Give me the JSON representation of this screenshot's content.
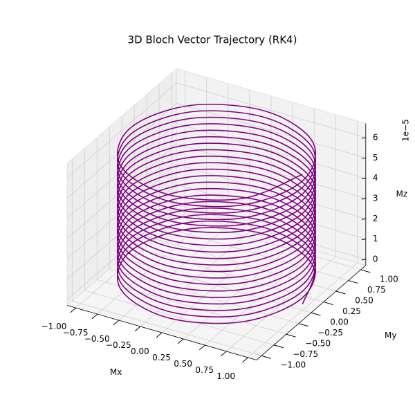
{
  "chart_data": {
    "type": "line3d",
    "title": "3D Bloch Vector Trajectory (RK4)",
    "xlabel": "Mx",
    "ylabel": "My",
    "zlabel": "Mz",
    "z_offset_label": "1e−5",
    "xlim": [
      -1.1,
      1.1
    ],
    "ylim": [
      -1.1,
      1.1
    ],
    "zlim": [
      -0.3,
      6.7
    ],
    "xticks": [
      {
        "value": -1,
        "label": "−1.00"
      },
      {
        "value": -0.75,
        "label": "−0.75"
      },
      {
        "value": -0.5,
        "label": "−0.50"
      },
      {
        "value": -0.25,
        "label": "−0.25"
      },
      {
        "value": 0,
        "label": "0.00"
      },
      0.25,
      {
        "value": 0.5,
        "label": "0.50"
      },
      0.75,
      {
        "value": 1,
        "label": "1.00"
      }
    ],
    "yticks": [
      {
        "value": -1,
        "label": "−1.00"
      },
      {
        "value": -0.75,
        "label": "−0.75"
      },
      {
        "value": -0.5,
        "label": "−0.50"
      },
      {
        "value": -0.25,
        "label": "−0.25"
      },
      {
        "value": 0,
        "label": "0.00"
      },
      0.25,
      {
        "value": 0.5,
        "label": "0.50"
      },
      0.75,
      {
        "value": 1,
        "label": "1.00"
      }
    ],
    "zticks": [
      0,
      1,
      2,
      3,
      4,
      5,
      6
    ],
    "grid": true,
    "series": [
      {
        "color": "#800080",
        "x": [
          1,
          0.71,
          0,
          -0.71,
          -1,
          -0.71,
          0,
          0.71,
          1,
          0.71,
          0,
          -0.71,
          -1,
          -0.71,
          0,
          0.71,
          1,
          0.71,
          0,
          -0.71,
          -1,
          -0.71,
          0,
          0.71,
          1,
          0.71,
          0,
          -0.71,
          -1,
          -0.71,
          0,
          0.71,
          1,
          0.71,
          0,
          -0.71,
          -1,
          -0.71,
          0,
          0.71,
          1,
          0.71,
          0,
          -0.71,
          -1,
          -0.71,
          0,
          0.71,
          1,
          0.71,
          0,
          -0.71,
          -1,
          -0.71,
          0,
          0.71,
          1,
          0.71,
          0,
          -0.71,
          -1,
          -0.71,
          0,
          0.71,
          1,
          0.71,
          0,
          -0.71,
          -1,
          -0.71,
          0,
          0.71,
          1,
          0.71,
          0,
          -0.71,
          -1,
          -0.71,
          0,
          0.71,
          1,
          0.71,
          0,
          -0.71,
          -1,
          -0.71,
          0,
          0.71,
          1,
          0.71,
          0,
          -0.71,
          -1,
          -0.71,
          0,
          0.71,
          1,
          0.71,
          0,
          -0.71,
          -1,
          -0.71,
          0,
          0.71,
          1,
          0.71,
          0,
          -0.71,
          -1,
          -0.71,
          0,
          0.71,
          1,
          0.71,
          0,
          -0.71,
          -1,
          -0.71,
          0,
          0.71,
          1,
          0.71,
          0,
          -0.71,
          -1,
          -0.71,
          0,
          0.71,
          1,
          0.71,
          0,
          -0.71,
          -1,
          -0.71,
          0,
          0.71,
          1,
          0.71,
          0,
          -0.71,
          -1,
          -0.71,
          0,
          0.71,
          1,
          0.71,
          0,
          -0.71,
          -1,
          -0.71,
          0,
          0.71,
          1,
          0.71,
          0,
          -0.71,
          -1,
          -0.71,
          0,
          0.71,
          1
        ],
        "y": [
          0,
          0.71,
          1,
          0.71,
          0,
          -0.71,
          -1,
          -0.71,
          0,
          0.71,
          1,
          0.71,
          0,
          -0.71,
          -1,
          -0.71,
          0,
          0.71,
          1,
          0.71,
          0,
          -0.71,
          -1,
          -0.71,
          0,
          0.71,
          1,
          0.71,
          0,
          -0.71,
          -1,
          -0.71,
          0,
          0.71,
          1,
          0.71,
          0,
          -0.71,
          -1,
          -0.71,
          0,
          0.71,
          1,
          0.71,
          0,
          -0.71,
          -1,
          -0.71,
          0,
          0.71,
          1,
          0.71,
          0,
          -0.71,
          -1,
          -0.71,
          0,
          0.71,
          1,
          0.71,
          0,
          -0.71,
          -1,
          -0.71,
          0,
          0.71,
          1,
          0.71,
          0,
          -0.71,
          -1,
          -0.71,
          0,
          0.71,
          1,
          0.71,
          0,
          -0.71,
          -1,
          -0.71,
          0,
          0.71,
          1,
          0.71,
          0,
          -0.71,
          -1,
          -0.71,
          0,
          0.71,
          1,
          0.71,
          0,
          -0.71,
          -1,
          -0.71,
          0,
          0.71,
          1,
          0.71,
          0,
          -0.71,
          -1,
          -0.71,
          0,
          0.71,
          1,
          0.71,
          0,
          -0.71,
          -1,
          -0.71,
          0,
          0.71,
          1,
          0.71,
          0,
          -0.71,
          -1,
          -0.71,
          0,
          0.71,
          1,
          0.71,
          0,
          -0.71,
          -1,
          -0.71,
          0,
          0.71,
          1,
          0.71,
          0,
          -0.71,
          -1,
          -0.71,
          0,
          0.71,
          1,
          0.71,
          0,
          -0.71,
          -1,
          -0.71,
          0,
          0.71,
          1,
          0.71,
          0,
          -0.71,
          -1,
          -0.71,
          0,
          0.71,
          1,
          0.71,
          0,
          -0.71,
          -1,
          -0.71,
          0
        ],
        "z": [
          0,
          0.04,
          0.08,
          0.12,
          0.16,
          0.2,
          0.24,
          0.28,
          0.32,
          0.36,
          0.4,
          0.44,
          0.48,
          0.52,
          0.56,
          0.6,
          0.64,
          0.68,
          0.72,
          0.76,
          0.8,
          0.84,
          0.88,
          0.92,
          0.96,
          1,
          1.04,
          1.08,
          1.12,
          1.16,
          1.2,
          1.24,
          1.28,
          1.32,
          1.36,
          1.4,
          1.44,
          1.48,
          1.52,
          1.56,
          1.6,
          1.64,
          1.68,
          1.72,
          1.76,
          1.8,
          1.84,
          1.88,
          1.92,
          1.96,
          2,
          2.04,
          2.08,
          2.12,
          2.16,
          2.2,
          2.24,
          2.28,
          2.32,
          2.36,
          2.4,
          2.44,
          2.48,
          2.52,
          2.56,
          2.6,
          2.64,
          2.68,
          2.72,
          2.76,
          2.8,
          2.84,
          2.88,
          2.92,
          2.96,
          3,
          3.04,
          3.08,
          3.12,
          3.16,
          3.2,
          3.24,
          3.28,
          3.32,
          3.36,
          3.4,
          3.44,
          3.48,
          3.52,
          3.56,
          3.6,
          3.64,
          3.68,
          3.72,
          3.76,
          3.8,
          3.84,
          3.88,
          3.92,
          3.96,
          4,
          4.04,
          4.08,
          4.12,
          4.16,
          4.2,
          4.24,
          4.28,
          4.32,
          4.36,
          4.4,
          4.44,
          4.48,
          4.52,
          4.56,
          4.6,
          4.64,
          4.68,
          4.72,
          4.76,
          4.8,
          4.84,
          4.88,
          4.92,
          4.96,
          5,
          5.04,
          5.08,
          5.12,
          5.16,
          5.2,
          5.24,
          5.28,
          5.32,
          5.36,
          5.4,
          5.44,
          5.48,
          5.52,
          5.56,
          5.6,
          5.64,
          5.68,
          5.72,
          5.76,
          5.8,
          5.84,
          5.88,
          5.92,
          5.96,
          6,
          6.04,
          6.08,
          6.12,
          6.16,
          6.2,
          6.24,
          6.28,
          6.32,
          6.36,
          6.4
        ]
      }
    ]
  }
}
